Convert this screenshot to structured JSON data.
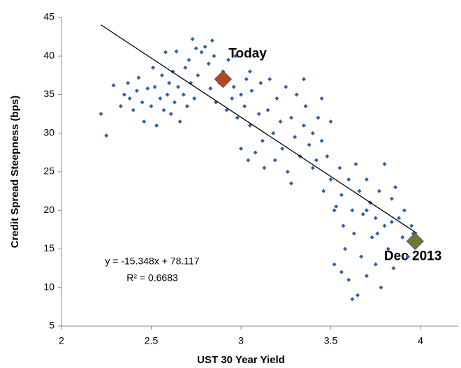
{
  "chart_data": {
    "type": "scatter",
    "xlabel": "UST 30 Year Yield",
    "ylabel": "Credit Spread Steepness (bps)",
    "color": "#2e5fa8",
    "xlim": [
      2,
      4.2
    ],
    "ylim": [
      5,
      45
    ],
    "xticks": [
      2,
      2.5,
      3,
      3.5,
      4
    ],
    "yticks": [
      5,
      10,
      15,
      20,
      25,
      30,
      35,
      40,
      45
    ],
    "x": [
      2.22,
      2.25,
      2.29,
      2.33,
      2.35,
      2.37,
      2.38,
      2.4,
      2.42,
      2.43,
      2.45,
      2.46,
      2.48,
      2.5,
      2.51,
      2.52,
      2.53,
      2.55,
      2.56,
      2.57,
      2.58,
      2.59,
      2.6,
      2.61,
      2.62,
      2.63,
      2.64,
      2.65,
      2.66,
      2.68,
      2.69,
      2.7,
      2.71,
      2.72,
      2.73,
      2.74,
      2.75,
      2.76,
      2.78,
      2.8,
      2.82,
      2.83,
      2.84,
      2.85,
      2.86,
      2.88,
      2.9,
      2.92,
      2.93,
      2.95,
      2.96,
      2.98,
      3.0,
      3.0,
      3.02,
      3.03,
      3.04,
      3.05,
      3.06,
      3.08,
      3.1,
      3.11,
      3.12,
      3.13,
      3.15,
      3.16,
      3.18,
      3.19,
      3.2,
      3.22,
      3.23,
      3.25,
      3.26,
      3.28,
      3.3,
      3.31,
      3.33,
      3.35,
      3.36,
      3.38,
      3.4,
      3.42,
      3.43,
      3.45,
      3.46,
      3.48,
      3.5,
      3.5,
      3.52,
      3.53,
      3.55,
      3.56,
      3.57,
      3.58,
      3.6,
      3.6,
      3.62,
      3.63,
      3.64,
      3.65,
      3.66,
      3.67,
      3.68,
      3.7,
      3.7,
      3.72,
      3.73,
      3.75,
      3.75,
      3.77,
      3.78,
      3.8,
      3.8,
      3.82,
      3.84,
      3.85,
      3.86,
      3.88,
      3.9,
      3.91,
      3.93,
      3.95,
      3.96,
      3.62,
      3.56,
      3.7,
      3.45,
      3.4,
      3.35,
      2.97,
      3.05,
      3.28,
      3.52,
      3.76,
      3.84
    ],
    "values": [
      32.5,
      29.7,
      36.2,
      33.5,
      35,
      36.5,
      34.5,
      33,
      35.5,
      37.2,
      34,
      31.5,
      35.8,
      33.5,
      38.5,
      36,
      31,
      34.5,
      37.5,
      33,
      40.5,
      35,
      36.5,
      32.5,
      38,
      34,
      40.6,
      36,
      31.5,
      35,
      38.5,
      33.5,
      39.5,
      36.5,
      42.2,
      34.5,
      41,
      37.5,
      40.5,
      41.2,
      39,
      35.8,
      42,
      40,
      34,
      36.5,
      38,
      33,
      39.5,
      34.5,
      36,
      32,
      35,
      28,
      33.5,
      37,
      26.5,
      31,
      35.5,
      27.5,
      32.5,
      36.5,
      29,
      25.5,
      33,
      37,
      30,
      26.5,
      34.5,
      31.5,
      28,
      36,
      25,
      32,
      29.5,
      35,
      27,
      31,
      33.5,
      28.5,
      30,
      26.5,
      32,
      29,
      22.5,
      27,
      31.5,
      24,
      13,
      20.5,
      25.5,
      22,
      18,
      15,
      24,
      11,
      20,
      17,
      26,
      9,
      22.5,
      14,
      19.5,
      24,
      11.5,
      21,
      16.5,
      19,
      13,
      22.5,
      10,
      26,
      18,
      15,
      21.5,
      12.5,
      23,
      19,
      16.5,
      20,
      14,
      18,
      17,
      8.5,
      12,
      20,
      34.5,
      25.5,
      37,
      40,
      38,
      23.5,
      20,
      17,
      18.5
    ],
    "trendline": {
      "x": [
        2.22,
        3.98
      ],
      "values": [
        44.04,
        17.03
      ],
      "color": "#000000",
      "equation": "y = -15.348x + 78.117",
      "r_squared": "R² = 0.6683"
    },
    "highlights": [
      {
        "label": "Today",
        "x": 2.9,
        "y": 37,
        "color": "#b5461f"
      },
      {
        "label": "Dec 2013",
        "x": 3.97,
        "y": 16,
        "color": "#6b7a2c"
      }
    ]
  }
}
